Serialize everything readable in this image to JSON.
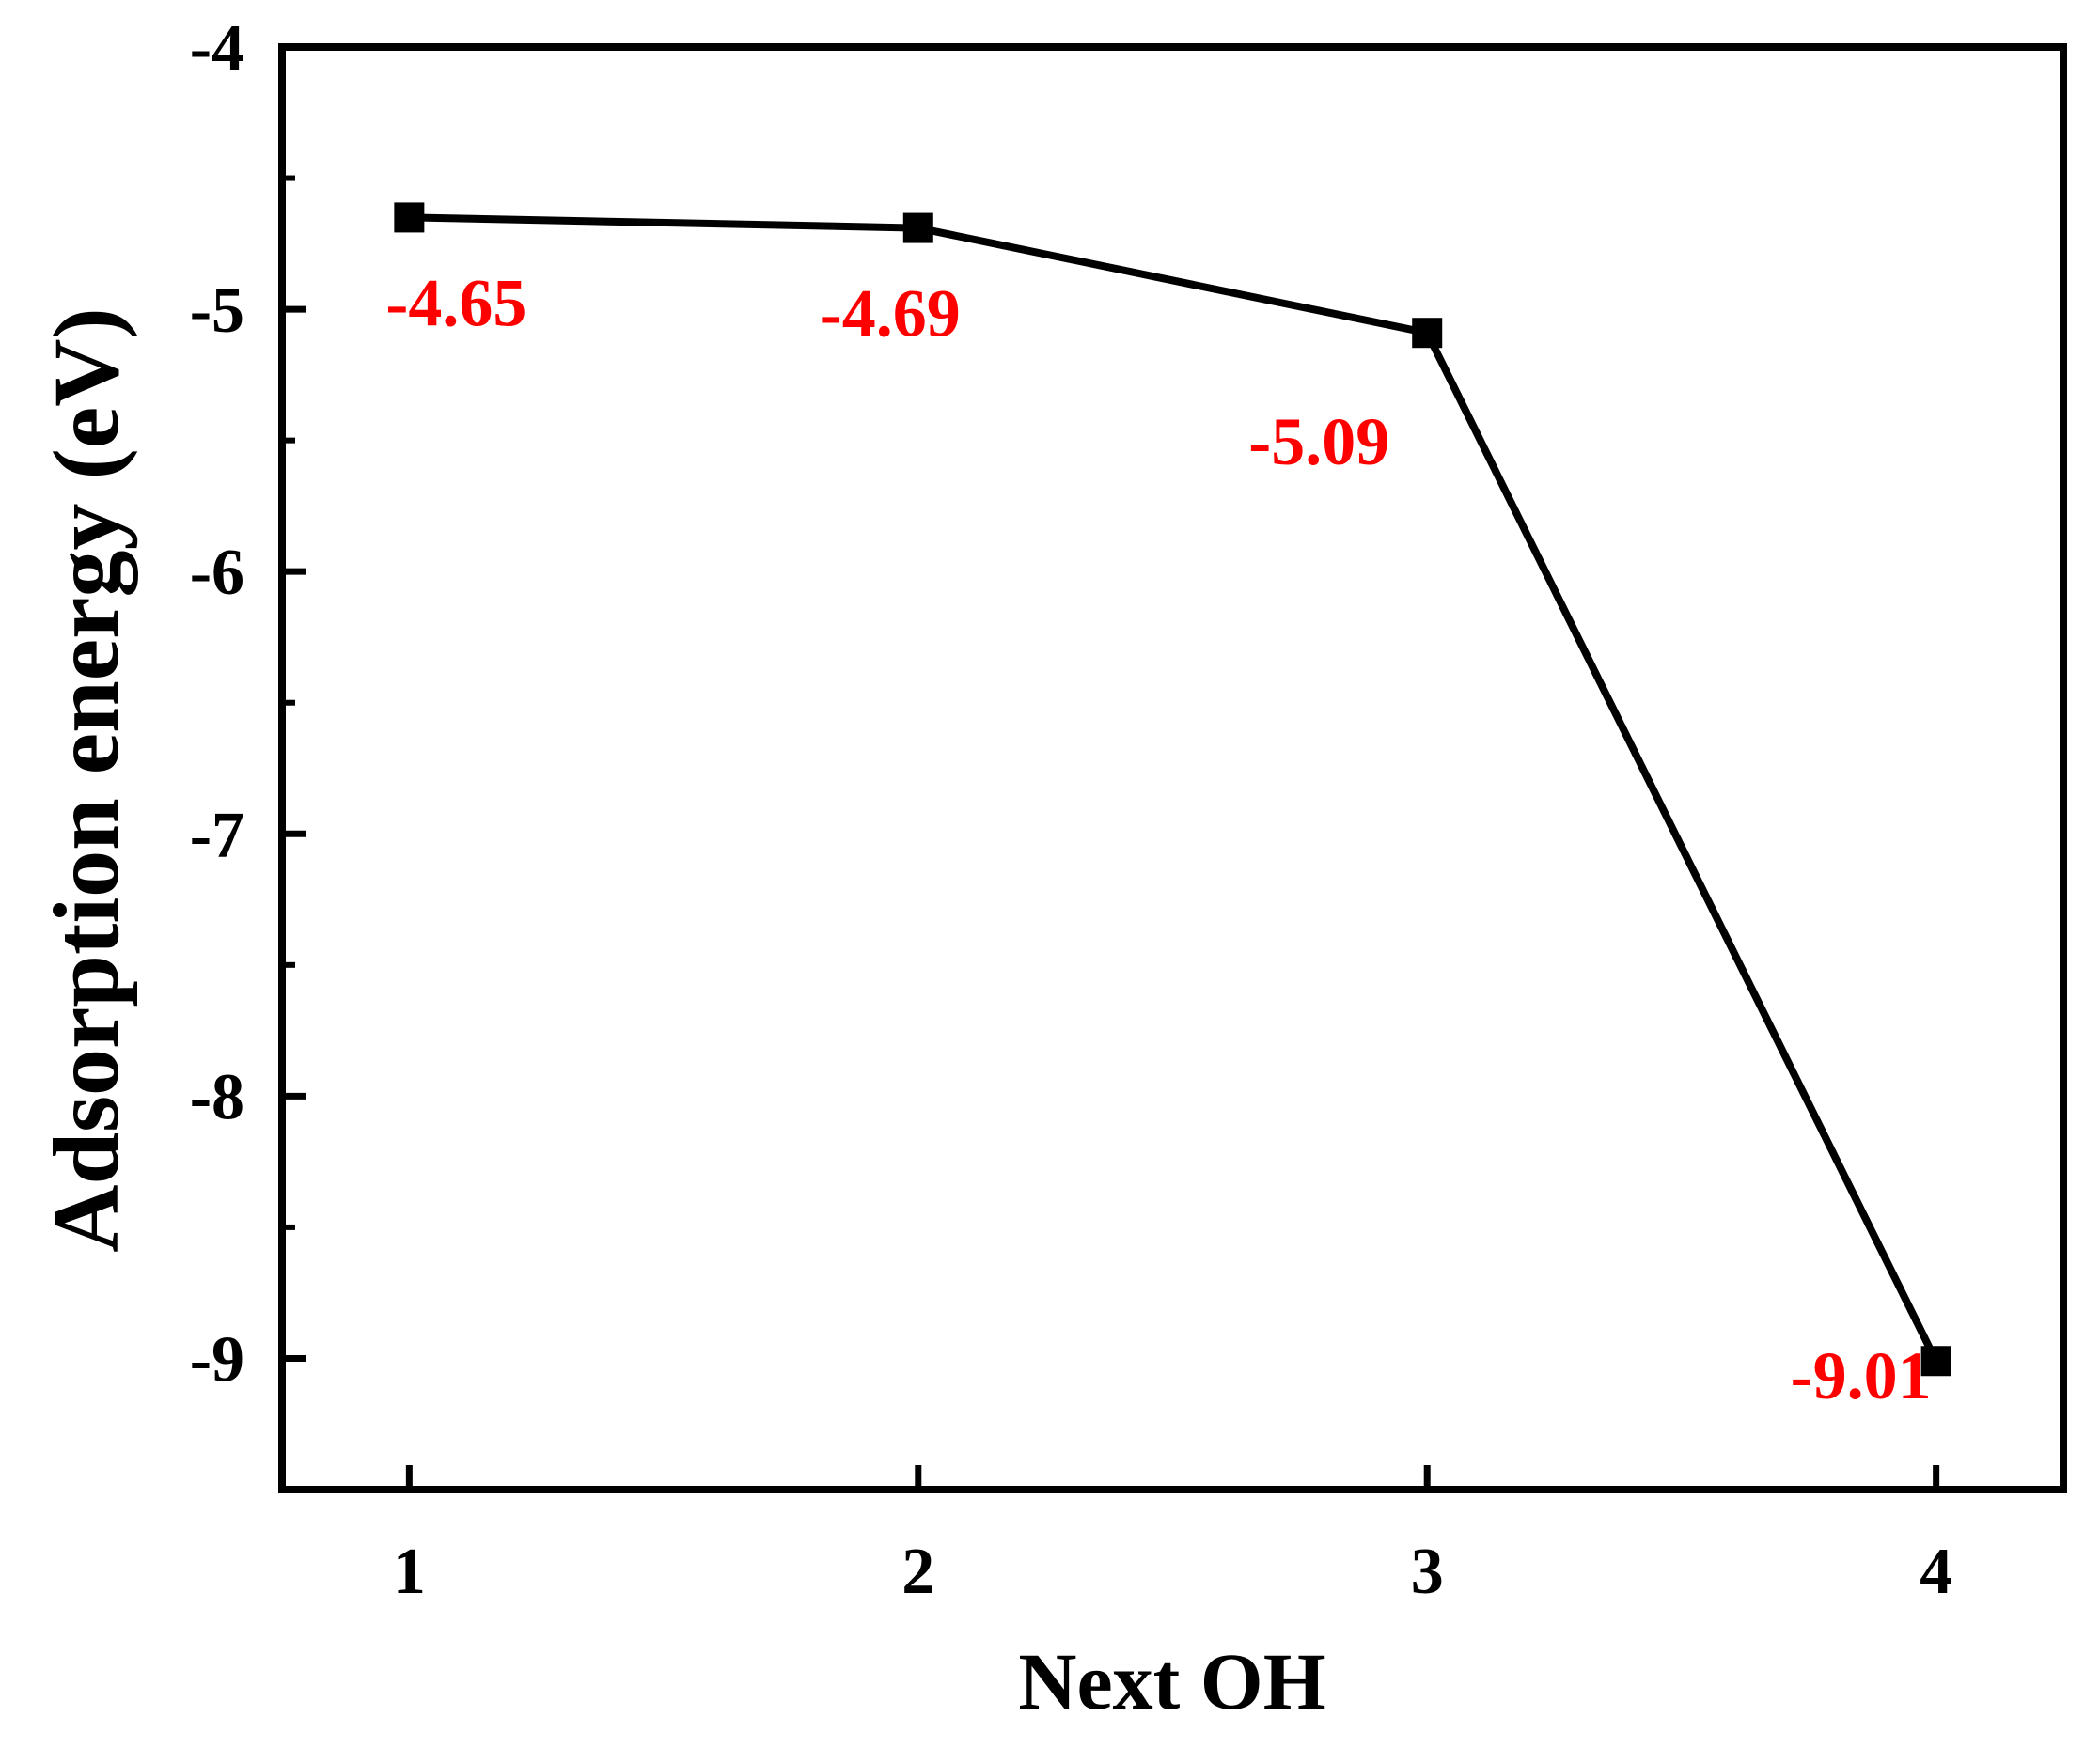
{
  "chart_data": {
    "type": "line",
    "title": "",
    "xlabel": "Next OH",
    "ylabel": "Adsorption energy (eV)",
    "x": [
      1,
      2,
      3,
      4
    ],
    "xticks": [
      "1",
      "2",
      "3",
      "4"
    ],
    "xlim": [
      0.75,
      4.25
    ],
    "ylim": [
      -9.5,
      -4
    ],
    "yticks": [
      "-4",
      "-5",
      "-6",
      "-7",
      "-8",
      "-9"
    ],
    "series": [
      {
        "values": [
          -4.65,
          -4.69,
          -5.09,
          -9.01
        ]
      }
    ],
    "data_labels": [
      "-4.65",
      "-4.69",
      "-5.09",
      "-9.01"
    ],
    "grid": false,
    "line_color": "#000000",
    "label_color": "#ff0000"
  }
}
